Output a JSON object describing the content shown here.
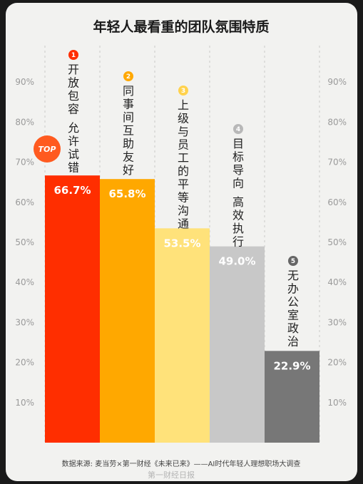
{
  "chart_data": {
    "type": "bar",
    "title": "年轻人最看重的团队氛围特质",
    "categories": [
      "开放包容 允许试错",
      "同事间互助友好",
      "上级与员工的平等沟通",
      "目标导向 高效执行",
      "无办公室政治"
    ],
    "category_lines": [
      [
        "开放包容",
        "允许试错"
      ],
      [
        "同事间互助友好"
      ],
      [
        "上级与员工的平等沟通"
      ],
      [
        "目标导向",
        "高效执行"
      ],
      [
        "无办公室政治"
      ]
    ],
    "ranks": [
      "1",
      "2",
      "3",
      "4",
      "5"
    ],
    "values": [
      66.7,
      65.8,
      53.5,
      49.0,
      22.9
    ],
    "value_labels": [
      "66.7%",
      "65.8%",
      "53.5%",
      "49.0%",
      "22.9%"
    ],
    "colors": [
      "#ff2e00",
      "#ffa800",
      "#ffe27a",
      "#c8c8c8",
      "#777777"
    ],
    "badge_colors": [
      "#ff2e00",
      "#ffa800",
      "#ffd24d",
      "#b8b8b8",
      "#666666"
    ],
    "ylim": [
      0,
      100
    ],
    "yticks": [
      "10%",
      "20%",
      "30%",
      "40%",
      "50%",
      "60%",
      "70%",
      "80%",
      "90%"
    ],
    "grid": "dashed vertical separators",
    "legend": "none",
    "top_badge": "TOP"
  },
  "footer": {
    "source": "数据来源: 麦当劳×第一财经《未来已来》——AI时代年轻人理想职场大调查",
    "watermark": "第一财经日报"
  }
}
